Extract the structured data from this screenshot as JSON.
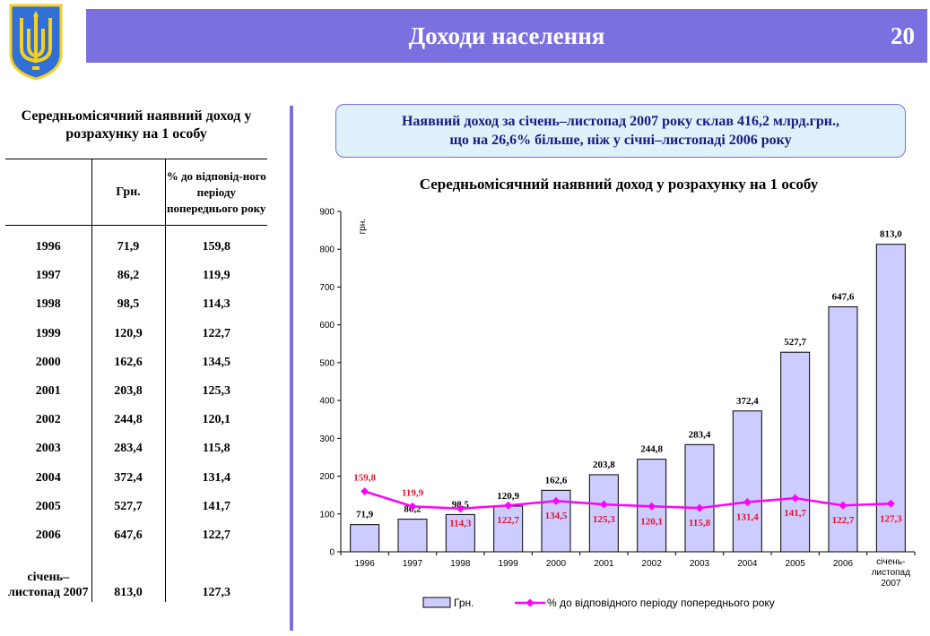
{
  "header": {
    "title": "Доходи населення",
    "page_number": "20"
  },
  "emblem": {
    "icon": "trident-icon",
    "colors": {
      "shield": "#2f6fd6",
      "trident": "#f5d020"
    }
  },
  "left": {
    "title": "Середньомісячний наявний доход у розрахунку на 1 особу",
    "table": {
      "col_grn": "Грн.",
      "col_pct": "% до відповід-ного періоду попереднього року",
      "rows": [
        {
          "year": "1996",
          "grn": "71,9",
          "pct": "159,8"
        },
        {
          "year": "1997",
          "grn": "86,2",
          "pct": "119,9"
        },
        {
          "year": "1998",
          "grn": "98,5",
          "pct": "114,3"
        },
        {
          "year": "1999",
          "grn": "120,9",
          "pct": "122,7"
        },
        {
          "year": "2000",
          "grn": "162,6",
          "pct": "134,5"
        },
        {
          "year": "2001",
          "grn": "203,8",
          "pct": "125,3"
        },
        {
          "year": "2002",
          "grn": "244,8",
          "pct": "120,1"
        },
        {
          "year": "2003",
          "grn": "283,4",
          "pct": "115,8"
        },
        {
          "year": "2004",
          "grn": "372,4",
          "pct": "131,4"
        },
        {
          "year": "2005",
          "grn": "527,7",
          "pct": "141,7"
        },
        {
          "year": "2006",
          "grn": "647,6",
          "pct": "122,7"
        },
        {
          "year": "січень–листопад 2007",
          "grn": "813,0",
          "pct": "127,3"
        }
      ]
    }
  },
  "callout": {
    "line1": "Наявний доход за січень–листопад 2007 року склав 416,2 млрд.грн.,",
    "line2": "що на 26,6% більше, ніж у січні–листопаді 2006 року"
  },
  "chart_data": {
    "type": "bar",
    "title": "Середньомісячний наявний доход у розрахунку на 1 особу",
    "ylabel": "грн.",
    "ylim": [
      0,
      900
    ],
    "yticks": [
      "0",
      "100",
      "200",
      "300",
      "400",
      "500",
      "600",
      "700",
      "800",
      "900"
    ],
    "categories": [
      "1996",
      "1997",
      "1998",
      "1999",
      "2000",
      "2001",
      "2002",
      "2003",
      "2004",
      "2005",
      "2006",
      "січень-листопад 2007"
    ],
    "series": [
      {
        "name": "Грн.",
        "kind": "bar",
        "values": [
          71.9,
          86.2,
          98.5,
          120.9,
          162.6,
          203.8,
          244.8,
          283.4,
          372.4,
          527.7,
          647.6,
          813.0
        ],
        "labels": [
          "71,9",
          "86,2",
          "98,5",
          "120,9",
          "162,6",
          "203,8",
          "244,8",
          "283,4",
          "372,4",
          "527,7",
          "647,6",
          "813,0"
        ],
        "color": "#ccccff"
      },
      {
        "name": "% до відповідного періоду попереднього року",
        "kind": "line",
        "values": [
          159.8,
          119.9,
          114.3,
          122.7,
          134.5,
          125.3,
          120.1,
          115.8,
          131.4,
          141.7,
          122.7,
          127.3
        ],
        "labels": [
          "159,8",
          "119,9",
          "114,3",
          "122,7",
          "134,5",
          "125,3",
          "120,1",
          "115,8",
          "131,4",
          "141,7",
          "122,7",
          "127,3"
        ],
        "color": "#ff00ff",
        "label_color": "#e8102c"
      }
    ],
    "grid": false,
    "legend": "bottom"
  }
}
